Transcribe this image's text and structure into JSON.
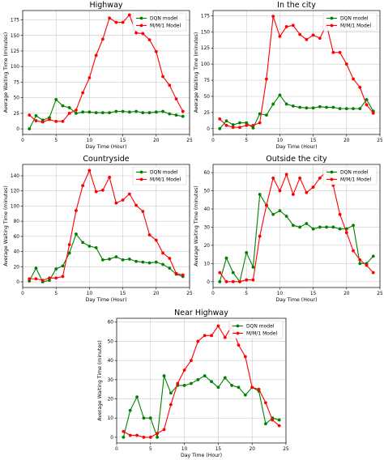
{
  "chart_data": [
    {
      "type": "line",
      "title": "Highway",
      "xlabel": "Day Time (Hour)",
      "ylabel": "Average Waiting Time (minutes)",
      "xlim": [
        0,
        25
      ],
      "ylim": [
        -9,
        190
      ],
      "xticks": [
        0,
        5,
        10,
        15,
        20,
        25
      ],
      "yticks": [
        0,
        25,
        50,
        75,
        100,
        125,
        150,
        175
      ],
      "grid": true,
      "legend": "top-right",
      "x": [
        1,
        2,
        3,
        4,
        5,
        6,
        7,
        8,
        9,
        10,
        11,
        12,
        13,
        14,
        15,
        16,
        17,
        18,
        19,
        20,
        21,
        22,
        23,
        24
      ],
      "series": [
        {
          "name": "DQN model",
          "color": "#008000",
          "values": [
            0,
            21,
            14,
            18,
            47,
            37,
            34,
            25,
            27,
            27,
            26,
            26,
            26,
            28,
            28,
            27,
            28,
            26,
            26,
            27,
            28,
            24,
            22,
            20
          ]
        },
        {
          "name": "M/M/1 Model",
          "color": "#ff0000",
          "values": [
            22,
            13,
            11,
            15,
            12,
            12,
            25,
            30,
            58,
            82,
            118,
            144,
            178,
            171,
            171,
            183,
            154,
            153,
            143,
            124,
            84,
            70,
            48,
            28
          ]
        }
      ]
    },
    {
      "type": "line",
      "title": "In the city",
      "xlabel": "Day Time (Hour)",
      "ylabel": "Average Waiting Time (minutes)",
      "xlim": [
        0,
        25
      ],
      "ylim": [
        -9,
        183
      ],
      "xticks": [
        0,
        5,
        10,
        15,
        20,
        25
      ],
      "yticks": [
        0,
        25,
        50,
        75,
        100,
        125,
        150,
        175
      ],
      "grid": true,
      "legend": "top-right",
      "x": [
        1,
        2,
        3,
        4,
        5,
        6,
        7,
        8,
        9,
        10,
        11,
        12,
        13,
        14,
        15,
        16,
        17,
        18,
        19,
        20,
        21,
        22,
        23,
        24
      ],
      "series": [
        {
          "name": "DQN model",
          "color": "#008000",
          "values": [
            0,
            12,
            6,
            9,
            9,
            1,
            23,
            21,
            38,
            52,
            38,
            35,
            33,
            32,
            32,
            34,
            33,
            33,
            31,
            31,
            31,
            31,
            45,
            27
          ]
        },
        {
          "name": "M/M/1 Model",
          "color": "#ff0000",
          "values": [
            15,
            5,
            2,
            2,
            5,
            5,
            9,
            77,
            174,
            143,
            158,
            160,
            146,
            138,
            145,
            140,
            161,
            118,
            118,
            100,
            77,
            64,
            37,
            24
          ]
        }
      ]
    },
    {
      "type": "line",
      "title": "Countryside",
      "xlabel": "Day Time (Hour)",
      "ylabel": "Average Waiting Time (minutes)",
      "xlim": [
        0,
        25
      ],
      "ylim": [
        -7.5,
        155
      ],
      "xticks": [
        0,
        5,
        10,
        15,
        20,
        25
      ],
      "yticks": [
        0,
        20,
        40,
        60,
        80,
        100,
        120,
        140
      ],
      "grid": true,
      "legend": "top-right",
      "x": [
        1,
        2,
        3,
        4,
        5,
        6,
        7,
        8,
        9,
        10,
        11,
        12,
        13,
        14,
        15,
        16,
        17,
        18,
        19,
        20,
        21,
        22,
        23,
        24
      ],
      "series": [
        {
          "name": "DQN model",
          "color": "#008000",
          "values": [
            1,
            18,
            0,
            2,
            17,
            21,
            38,
            63,
            52,
            47,
            45,
            29,
            30,
            33,
            29,
            30,
            27,
            26,
            25,
            26,
            23,
            18,
            10,
            7
          ]
        },
        {
          "name": "M/M/1 Model",
          "color": "#ff0000",
          "values": [
            4,
            4,
            2,
            5,
            5,
            7,
            49,
            94,
            127,
            147,
            119,
            121,
            138,
            104,
            108,
            116,
            101,
            93,
            62,
            55,
            38,
            31,
            11,
            9
          ]
        }
      ]
    },
    {
      "type": "line",
      "title": "Outside the city",
      "xlabel": "Day Time (Hour)",
      "ylabel": "Average Waiting Time (minutes)",
      "xlim": [
        0,
        25
      ],
      "ylim": [
        -3.2,
        64.5
      ],
      "xticks": [
        0,
        5,
        10,
        15,
        20,
        25
      ],
      "yticks": [
        0,
        10,
        20,
        30,
        40,
        50,
        60
      ],
      "grid": true,
      "legend": "top-right",
      "x": [
        1,
        2,
        3,
        4,
        5,
        6,
        7,
        8,
        9,
        10,
        11,
        12,
        13,
        14,
        15,
        16,
        17,
        18,
        19,
        20,
        21,
        22,
        23,
        24
      ],
      "series": [
        {
          "name": "DQN model",
          "color": "#008000",
          "values": [
            0,
            13,
            5,
            0,
            16,
            8,
            48,
            42,
            37,
            39,
            36,
            31,
            30,
            32,
            29,
            30,
            30,
            30,
            29,
            29,
            31,
            10,
            10,
            14
          ]
        },
        {
          "name": "M/M/1 Model",
          "color": "#ff0000",
          "values": [
            5,
            0,
            0,
            0,
            1,
            1,
            25,
            42,
            57,
            50,
            59,
            48,
            57,
            49,
            52,
            57,
            61,
            53,
            37,
            27,
            17,
            12,
            9,
            5
          ]
        }
      ]
    },
    {
      "type": "line",
      "title": "Near Highway",
      "xlabel": "Day Time (Hour)",
      "ylabel": "Average Waiting Time (minutes)",
      "xlim": [
        0,
        25
      ],
      "ylim": [
        -3,
        62
      ],
      "xticks": [
        0,
        5,
        10,
        15,
        20,
        25
      ],
      "yticks": [
        0,
        10,
        20,
        30,
        40,
        50,
        60
      ],
      "grid": true,
      "legend": "top-right",
      "x": [
        1,
        2,
        3,
        4,
        5,
        6,
        7,
        8,
        9,
        10,
        11,
        12,
        13,
        14,
        15,
        16,
        17,
        18,
        19,
        20,
        21,
        22,
        23,
        24
      ],
      "series": [
        {
          "name": "DQN model",
          "color": "#008000",
          "values": [
            0,
            14,
            21,
            10,
            10,
            0,
            32,
            23,
            27,
            27,
            28,
            30,
            32,
            29,
            26,
            31,
            27,
            26,
            22,
            26,
            24,
            7,
            10,
            9
          ]
        },
        {
          "name": "M/M/1 Model",
          "color": "#ff0000",
          "values": [
            3,
            1,
            1,
            0,
            0,
            2,
            4,
            17,
            28,
            35,
            40,
            50,
            53,
            53,
            58,
            52,
            58,
            48,
            42,
            26,
            25,
            18,
            9,
            6
          ]
        }
      ]
    }
  ]
}
